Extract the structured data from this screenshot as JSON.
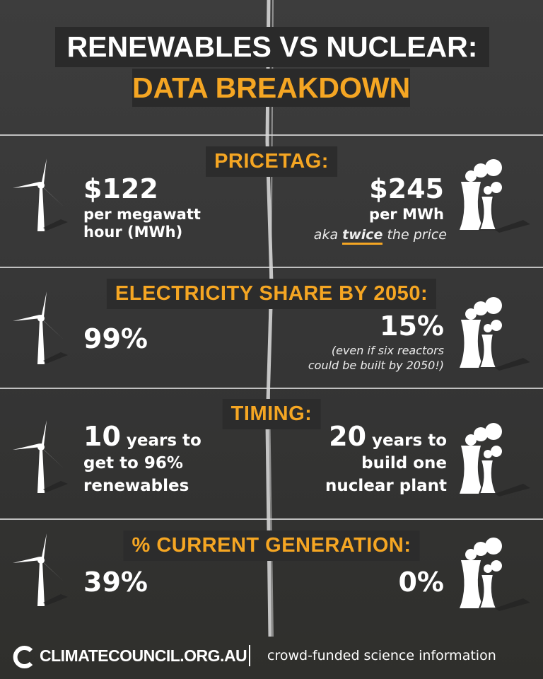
{
  "header": {
    "title_line1": "RENEWABLES VS NUCLEAR:",
    "title_line2": "DATA BREAKDOWN"
  },
  "sections": [
    {
      "heading": "PRICETAG:",
      "renewables": {
        "value": "$122",
        "lines": [
          "per megawatt",
          "hour (MWh)"
        ]
      },
      "nuclear": {
        "value": "$245",
        "lines": [
          "per MWh"
        ],
        "note_pre": "aka",
        "note_em": "twice",
        "note_post": "the price"
      }
    },
    {
      "heading": "ELECTRICITY SHARE BY 2050:",
      "renewables": {
        "value": "99%"
      },
      "nuclear": {
        "value": "15%",
        "notes": [
          "(even if six reactors",
          "could be built by 2050!)"
        ]
      }
    },
    {
      "heading": "TIMING:",
      "renewables": {
        "value": "10",
        "lines": [
          "years to",
          "get to 96%",
          "renewables"
        ]
      },
      "nuclear": {
        "value": "20",
        "lines": [
          "years to",
          "build one",
          "nuclear plant"
        ]
      }
    },
    {
      "heading": "% CURRENT GENERATION:",
      "renewables": {
        "value": "39%"
      },
      "nuclear": {
        "value": "0%"
      }
    }
  ],
  "footer": {
    "logo": "CLIMATECOUNCIL.ORG.AU",
    "tagline": "crowd-funded science information"
  }
}
